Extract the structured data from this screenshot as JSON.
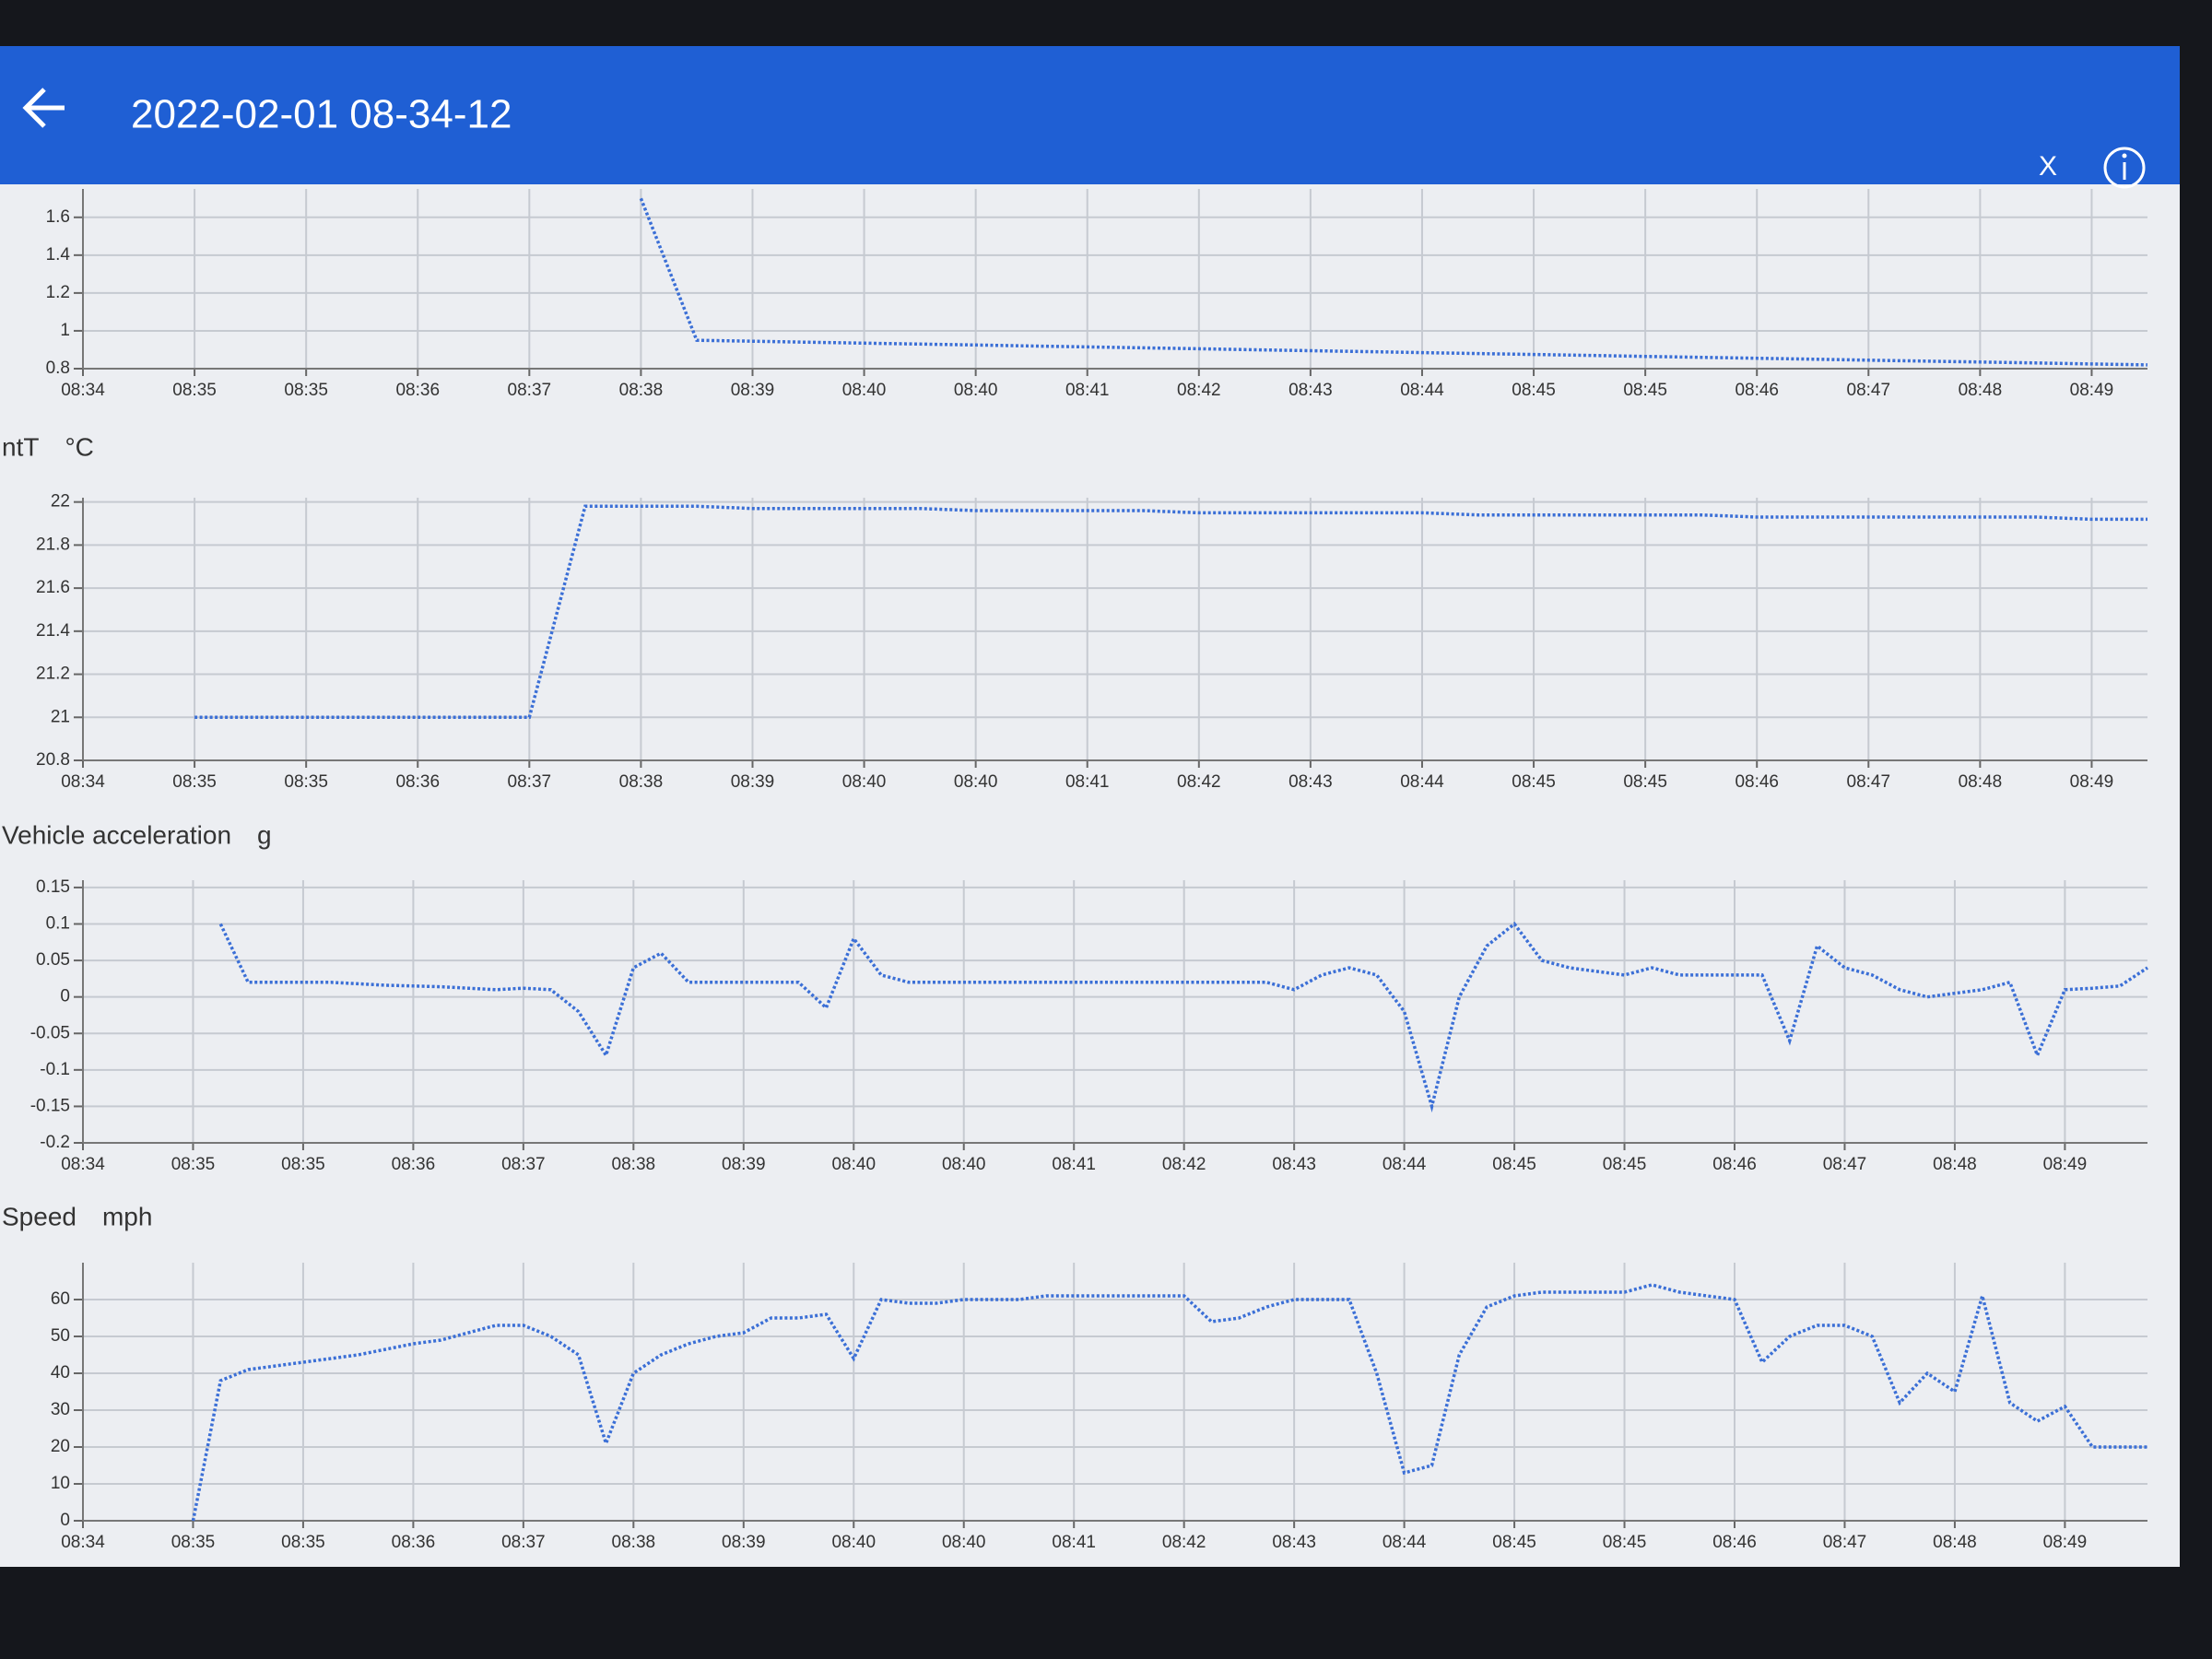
{
  "header": {
    "title": "2022-02-01 08-34-12",
    "close": "X"
  },
  "chart_data": [
    {
      "type": "line",
      "label": null,
      "unit": null,
      "categories": [
        "08:34",
        null,
        "08:35",
        null,
        "08:35",
        null,
        "08:36",
        null,
        "08:37",
        null,
        "08:38",
        null,
        "08:39",
        null,
        "08:40",
        null,
        "08:40",
        null,
        "08:41",
        null,
        "08:42",
        null,
        "08:43",
        null,
        "08:44",
        null,
        "08:45",
        null,
        "08:45",
        null,
        "08:46",
        null,
        "08:47",
        null,
        "08:48",
        null,
        "08:49",
        null
      ],
      "series": [
        {
          "color": "#3b6fd6",
          "values": [
            null,
            null,
            null,
            null,
            null,
            null,
            null,
            null,
            null,
            null,
            1.7,
            0.95,
            0.945,
            0.94,
            0.935,
            0.93,
            0.925,
            0.92,
            0.915,
            0.91,
            0.905,
            0.9,
            0.895,
            0.89,
            0.885,
            0.88,
            0.875,
            0.87,
            0.865,
            0.86,
            0.855,
            0.85,
            0.845,
            0.84,
            0.835,
            0.83,
            0.825,
            0.82
          ]
        }
      ],
      "ylim": [
        0.8,
        1.75
      ],
      "yticks": [
        0.8,
        1,
        1.2,
        1.4,
        1.6
      ],
      "grid": true
    },
    {
      "type": "line",
      "label": "ntT",
      "unit": "°C",
      "categories": [
        "08:34",
        null,
        "08:35",
        null,
        "08:35",
        null,
        "08:36",
        null,
        "08:37",
        null,
        "08:38",
        null,
        "08:39",
        null,
        "08:40",
        null,
        "08:40",
        null,
        "08:41",
        null,
        "08:42",
        null,
        "08:43",
        null,
        "08:44",
        null,
        "08:45",
        null,
        "08:45",
        null,
        "08:46",
        null,
        "08:47",
        null,
        "08:48",
        null,
        "08:49",
        null
      ],
      "series": [
        {
          "color": "#3b6fd6",
          "values": [
            null,
            null,
            21,
            21,
            21,
            21,
            21,
            21,
            21,
            21.98,
            21.98,
            21.98,
            21.97,
            21.97,
            21.97,
            21.97,
            21.96,
            21.96,
            21.96,
            21.96,
            21.95,
            21.95,
            21.95,
            21.95,
            21.95,
            21.94,
            21.94,
            21.94,
            21.94,
            21.94,
            21.93,
            21.93,
            21.93,
            21.93,
            21.93,
            21.93,
            21.92,
            21.92
          ]
        }
      ],
      "ylim": [
        20.8,
        22.02
      ],
      "yticks": [
        20.8,
        21,
        21.2,
        21.4,
        21.6,
        21.8,
        22
      ],
      "grid": true
    },
    {
      "type": "line",
      "label": "Vehicle acceleration",
      "unit": "g",
      "categories": [
        "08:34",
        null,
        null,
        null,
        "08:35",
        null,
        null,
        null,
        "08:35",
        null,
        null,
        null,
        "08:36",
        null,
        null,
        null,
        "08:37",
        null,
        null,
        null,
        "08:38",
        null,
        null,
        null,
        "08:39",
        null,
        null,
        null,
        "08:40",
        null,
        null,
        null,
        "08:40",
        null,
        null,
        null,
        "08:41",
        null,
        null,
        null,
        "08:42",
        null,
        null,
        null,
        "08:43",
        null,
        null,
        null,
        "08:44",
        null,
        null,
        null,
        "08:45",
        null,
        null,
        null,
        "08:45",
        null,
        null,
        null,
        "08:46",
        null,
        null,
        null,
        "08:47",
        null,
        null,
        null,
        "08:48",
        null,
        null,
        null,
        "08:49",
        null,
        null,
        null
      ],
      "series": [
        {
          "color": "#3b6fd6",
          "values": [
            null,
            null,
            null,
            null,
            null,
            0.1,
            0.02,
            0.02,
            0.02,
            0.02,
            0.018,
            0.016,
            0.015,
            0.014,
            0.012,
            0.01,
            0.012,
            0.01,
            -0.02,
            -0.08,
            0.04,
            0.06,
            0.02,
            0.02,
            0.02,
            0.02,
            0.02,
            -0.015,
            0.08,
            0.03,
            0.02,
            0.02,
            0.02,
            0.02,
            0.02,
            0.02,
            0.02,
            0.02,
            0.02,
            0.02,
            0.02,
            0.02,
            0.02,
            0.02,
            0.01,
            0.03,
            0.04,
            0.03,
            -0.02,
            -0.15,
            0,
            0.07,
            0.1,
            0.05,
            0.04,
            0.035,
            0.03,
            0.04,
            0.03,
            0.03,
            0.03,
            0.03,
            -0.06,
            0.07,
            0.04,
            0.03,
            0.01,
            0,
            0.005,
            0.01,
            0.02,
            -0.08,
            0.01,
            0.012,
            0.015,
            0.04
          ]
        }
      ],
      "ylim": [
        -0.2,
        0.16
      ],
      "yticks": [
        -0.2,
        -0.15,
        -0.1,
        -0.05,
        0,
        0.05,
        0.1,
        0.15
      ],
      "grid": true
    },
    {
      "type": "line",
      "label": "Speed",
      "unit": "mph",
      "categories": [
        "08:34",
        null,
        null,
        null,
        "08:35",
        null,
        null,
        null,
        "08:35",
        null,
        null,
        null,
        "08:36",
        null,
        null,
        null,
        "08:37",
        null,
        null,
        null,
        "08:38",
        null,
        null,
        null,
        "08:39",
        null,
        null,
        null,
        "08:40",
        null,
        null,
        null,
        "08:40",
        null,
        null,
        null,
        "08:41",
        null,
        null,
        null,
        "08:42",
        null,
        null,
        null,
        "08:43",
        null,
        null,
        null,
        "08:44",
        null,
        null,
        null,
        "08:45",
        null,
        null,
        null,
        "08:45",
        null,
        null,
        null,
        "08:46",
        null,
        null,
        null,
        "08:47",
        null,
        null,
        null,
        "08:48",
        null,
        null,
        null,
        "08:49",
        null,
        null,
        null
      ],
      "series": [
        {
          "color": "#3b6fd6",
          "values": [
            null,
            null,
            null,
            null,
            0,
            38,
            41,
            42,
            43,
            44,
            45,
            46.5,
            48,
            49,
            51,
            53,
            53,
            50,
            45,
            21,
            40,
            45,
            48,
            50,
            51,
            55,
            55,
            56,
            44,
            60,
            59,
            59,
            60,
            60,
            60,
            61,
            61,
            61,
            61,
            61,
            61,
            54,
            55,
            58,
            60,
            60,
            60,
            40,
            13,
            15,
            45,
            58,
            61,
            62,
            62,
            62,
            62,
            64,
            62,
            61,
            60,
            43,
            50,
            53,
            53,
            50,
            32,
            40,
            35,
            61,
            32,
            27,
            31,
            20,
            20,
            20
          ]
        }
      ],
      "ylim": [
        0,
        70
      ],
      "yticks": [
        0,
        10,
        20,
        30,
        40,
        50,
        60
      ],
      "grid": true
    }
  ]
}
